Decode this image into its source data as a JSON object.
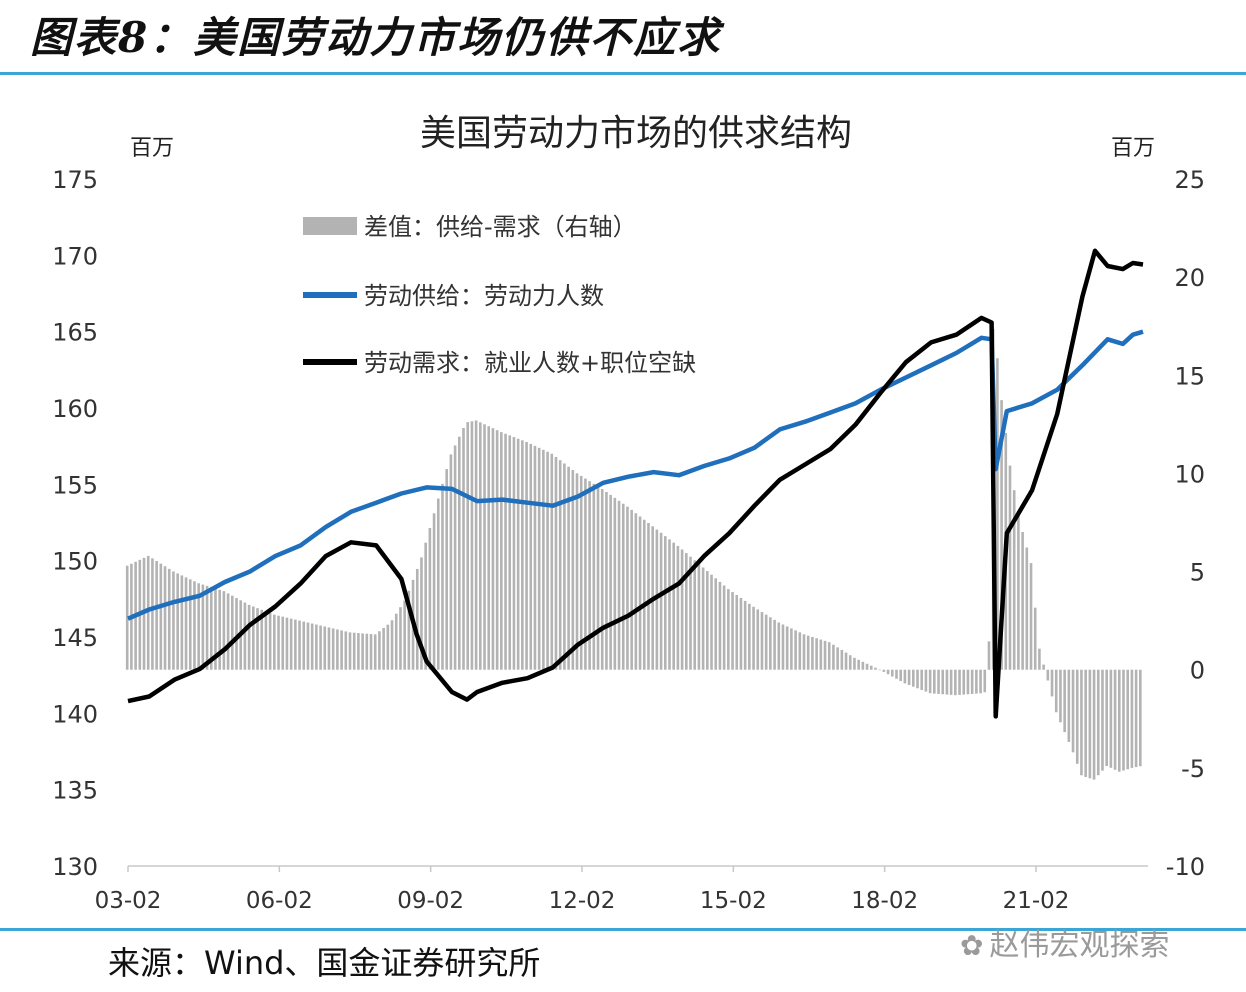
{
  "figure": {
    "label": "图表8：美国劳动力市场仍供不应求",
    "source": "来源：Wind、国金证券研究所",
    "watermark": "赵伟宏观探索"
  },
  "chart_data": {
    "type": "line",
    "title": "美国劳动力市场的供求结构",
    "y_left_unit": "百万",
    "y_right_unit": "百万",
    "y_left_lim": [
      130,
      175
    ],
    "y_left_ticks": [
      "130",
      "135",
      "140",
      "145",
      "150",
      "155",
      "160",
      "165",
      "170",
      "175"
    ],
    "y_right_lim": [
      -10,
      25
    ],
    "y_right_ticks": [
      "-10",
      "-5",
      "0",
      "5",
      "10",
      "15",
      "20",
      "25"
    ],
    "x_lim": [
      2003.08,
      2023.3
    ],
    "x_ticks": [
      {
        "label": "03-02",
        "x": 2003.08
      },
      {
        "label": "06-02",
        "x": 2006.08
      },
      {
        "label": "09-02",
        "x": 2009.08
      },
      {
        "label": "12-02",
        "x": 2012.08
      },
      {
        "label": "15-02",
        "x": 2015.08
      },
      {
        "label": "18-02",
        "x": 2018.08
      },
      {
        "label": "21-02",
        "x": 2021.08
      }
    ],
    "legend_position": "top-left",
    "colors": {
      "gap": "#b3b3b3",
      "supply": "#1f6fbd",
      "demand": "#000000"
    },
    "series": [
      {
        "name": "差值：供给-需求（右轴）",
        "type": "bar",
        "axis": "right",
        "points": [
          [
            2003.08,
            5.3
          ],
          [
            2003.5,
            5.8
          ],
          [
            2004,
            5.0
          ],
          [
            2004.5,
            4.4
          ],
          [
            2005,
            4.0
          ],
          [
            2005.5,
            3.3
          ],
          [
            2006,
            2.8
          ],
          [
            2006.5,
            2.5
          ],
          [
            2007,
            2.2
          ],
          [
            2007.5,
            1.9
          ],
          [
            2008,
            1.8
          ],
          [
            2008.3,
            2.4
          ],
          [
            2008.6,
            3.6
          ],
          [
            2008.9,
            5.6
          ],
          [
            2009.2,
            8.3
          ],
          [
            2009.5,
            11.0
          ],
          [
            2009.8,
            12.6
          ],
          [
            2010,
            12.7
          ],
          [
            2010.5,
            12.1
          ],
          [
            2011,
            11.6
          ],
          [
            2011.5,
            11.0
          ],
          [
            2012,
            10.0
          ],
          [
            2012.5,
            9.2
          ],
          [
            2013,
            8.3
          ],
          [
            2013.5,
            7.3
          ],
          [
            2014,
            6.3
          ],
          [
            2014.5,
            5.2
          ],
          [
            2015,
            4.1
          ],
          [
            2015.5,
            3.2
          ],
          [
            2016,
            2.4
          ],
          [
            2016.5,
            1.8
          ],
          [
            2017,
            1.4
          ],
          [
            2017.5,
            0.6
          ],
          [
            2018,
            0.0
          ],
          [
            2018.5,
            -0.7
          ],
          [
            2019,
            -1.2
          ],
          [
            2019.5,
            -1.3
          ],
          [
            2020,
            -1.2
          ],
          [
            2020.15,
            -1.1
          ],
          [
            2020.25,
            18.0
          ],
          [
            2020.4,
            14.0
          ],
          [
            2020.6,
            10.0
          ],
          [
            2020.8,
            7.3
          ],
          [
            2021,
            5.4
          ],
          [
            2021.15,
            1.2
          ],
          [
            2021.5,
            -2.2
          ],
          [
            2021.8,
            -4.0
          ],
          [
            2022,
            -5.4
          ],
          [
            2022.25,
            -5.6
          ],
          [
            2022.5,
            -4.9
          ],
          [
            2022.75,
            -5.2
          ],
          [
            2023,
            -5.0
          ],
          [
            2023.2,
            -4.9
          ]
        ]
      },
      {
        "name": "劳动供给：劳动力人数",
        "type": "line",
        "axis": "left",
        "points": [
          [
            2003.08,
            146.2
          ],
          [
            2003.5,
            146.8
          ],
          [
            2004,
            147.3
          ],
          [
            2004.5,
            147.7
          ],
          [
            2005,
            148.6
          ],
          [
            2005.5,
            149.3
          ],
          [
            2006,
            150.3
          ],
          [
            2006.5,
            151.0
          ],
          [
            2007,
            152.2
          ],
          [
            2007.5,
            153.2
          ],
          [
            2008,
            153.8
          ],
          [
            2008.5,
            154.4
          ],
          [
            2009,
            154.8
          ],
          [
            2009.5,
            154.7
          ],
          [
            2010,
            153.9
          ],
          [
            2010.5,
            154.0
          ],
          [
            2011,
            153.8
          ],
          [
            2011.5,
            153.6
          ],
          [
            2012,
            154.2
          ],
          [
            2012.5,
            155.1
          ],
          [
            2013,
            155.5
          ],
          [
            2013.5,
            155.8
          ],
          [
            2014,
            155.6
          ],
          [
            2014.5,
            156.2
          ],
          [
            2015,
            156.7
          ],
          [
            2015.5,
            157.4
          ],
          [
            2016,
            158.6
          ],
          [
            2016.5,
            159.1
          ],
          [
            2017,
            159.7
          ],
          [
            2017.5,
            160.3
          ],
          [
            2018,
            161.2
          ],
          [
            2018.5,
            162.0
          ],
          [
            2019,
            162.8
          ],
          [
            2019.5,
            163.6
          ],
          [
            2020,
            164.6
          ],
          [
            2020.2,
            164.5
          ],
          [
            2020.28,
            156.0
          ],
          [
            2020.5,
            159.8
          ],
          [
            2021,
            160.3
          ],
          [
            2021.5,
            161.2
          ],
          [
            2022,
            162.8
          ],
          [
            2022.5,
            164.5
          ],
          [
            2022.8,
            164.2
          ],
          [
            2023,
            164.8
          ],
          [
            2023.2,
            165.0
          ]
        ]
      },
      {
        "name": "劳动需求：就业人数+职位空缺",
        "type": "line",
        "axis": "left",
        "points": [
          [
            2003.08,
            140.8
          ],
          [
            2003.5,
            141.1
          ],
          [
            2004,
            142.2
          ],
          [
            2004.5,
            142.9
          ],
          [
            2005,
            144.2
          ],
          [
            2005.5,
            145.8
          ],
          [
            2006,
            147.0
          ],
          [
            2006.5,
            148.5
          ],
          [
            2007,
            150.3
          ],
          [
            2007.5,
            151.2
          ],
          [
            2008,
            151.0
          ],
          [
            2008.5,
            148.8
          ],
          [
            2008.8,
            145.2
          ],
          [
            2009,
            143.4
          ],
          [
            2009.5,
            141.4
          ],
          [
            2009.8,
            140.9
          ],
          [
            2010,
            141.4
          ],
          [
            2010.5,
            142.0
          ],
          [
            2011,
            142.3
          ],
          [
            2011.5,
            143.0
          ],
          [
            2012,
            144.5
          ],
          [
            2012.5,
            145.6
          ],
          [
            2013,
            146.4
          ],
          [
            2013.5,
            147.5
          ],
          [
            2014,
            148.5
          ],
          [
            2014.5,
            150.3
          ],
          [
            2015,
            151.8
          ],
          [
            2015.5,
            153.6
          ],
          [
            2016,
            155.3
          ],
          [
            2016.5,
            156.3
          ],
          [
            2017,
            157.3
          ],
          [
            2017.5,
            158.9
          ],
          [
            2018,
            161.0
          ],
          [
            2018.5,
            163.0
          ],
          [
            2019,
            164.3
          ],
          [
            2019.5,
            164.8
          ],
          [
            2020,
            165.9
          ],
          [
            2020.2,
            165.6
          ],
          [
            2020.28,
            139.8
          ],
          [
            2020.5,
            151.8
          ],
          [
            2021,
            154.6
          ],
          [
            2021.5,
            159.6
          ],
          [
            2022,
            167.3
          ],
          [
            2022.25,
            170.3
          ],
          [
            2022.5,
            169.3
          ],
          [
            2022.8,
            169.1
          ],
          [
            2023,
            169.5
          ],
          [
            2023.2,
            169.4
          ]
        ]
      }
    ]
  }
}
